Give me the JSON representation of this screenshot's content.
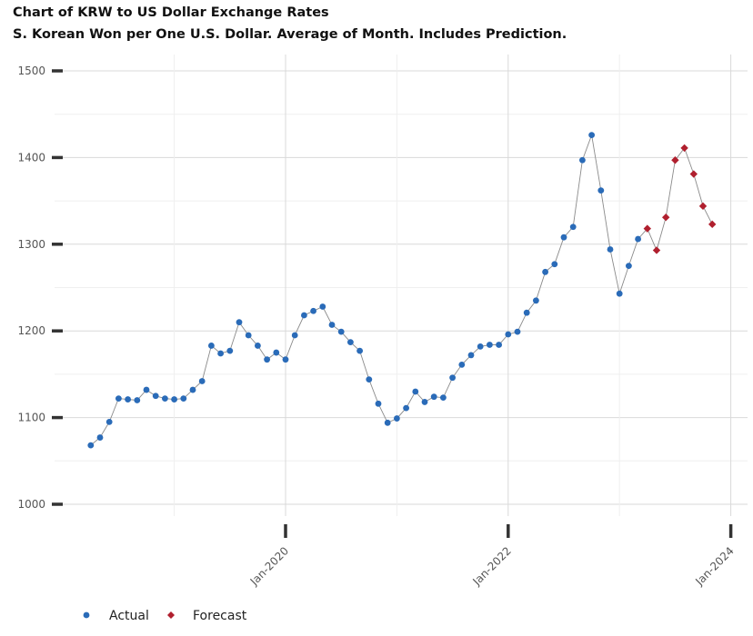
{
  "chart_data": {
    "type": "scatter",
    "title": "Chart of KRW to US Dollar Exchange Rates",
    "subtitle": "S. Korean Won per One U.S. Dollar.  Average of Month.  Includes Prediction.",
    "xlabel": "",
    "ylabel": "",
    "ylim": [
      1000,
      1500
    ],
    "y_ticks": [
      1000,
      1100,
      1200,
      1300,
      1400,
      1500
    ],
    "y_tick_labels": [
      "1000",
      "1100",
      "1200",
      "1300",
      "1400",
      "1500"
    ],
    "x_ticks": [
      "2020-01",
      "2022-01",
      "2024-01"
    ],
    "x_tick_labels": [
      "Jan-2020",
      "Jan-2022",
      "Jan-2024"
    ],
    "grid": true,
    "legend_position": "bottom-left",
    "series": [
      {
        "name": "Actual",
        "color": "#2a6bb8",
        "x": [
          "2018-04",
          "2018-05",
          "2018-06",
          "2018-07",
          "2018-08",
          "2018-09",
          "2018-10",
          "2018-11",
          "2018-12",
          "2019-01",
          "2019-02",
          "2019-03",
          "2019-04",
          "2019-05",
          "2019-06",
          "2019-07",
          "2019-08",
          "2019-09",
          "2019-10",
          "2019-11",
          "2019-12",
          "2020-01",
          "2020-02",
          "2020-03",
          "2020-04",
          "2020-05",
          "2020-06",
          "2020-07",
          "2020-08",
          "2020-09",
          "2020-10",
          "2020-11",
          "2020-12",
          "2021-01",
          "2021-02",
          "2021-03",
          "2021-04",
          "2021-05",
          "2021-06",
          "2021-07",
          "2021-08",
          "2021-09",
          "2021-10",
          "2021-11",
          "2021-12",
          "2022-01",
          "2022-02",
          "2022-03",
          "2022-04",
          "2022-05",
          "2022-06",
          "2022-07",
          "2022-08",
          "2022-09",
          "2022-10",
          "2022-11",
          "2022-12",
          "2023-01",
          "2023-02",
          "2023-03"
        ],
        "values": [
          1068,
          1077,
          1095,
          1122,
          1121,
          1120,
          1132,
          1125,
          1122,
          1121,
          1122,
          1132,
          1142,
          1183,
          1174,
          1177,
          1210,
          1195,
          1183,
          1167,
          1175,
          1167,
          1195,
          1218,
          1223,
          1228,
          1207,
          1199,
          1187,
          1177,
          1144,
          1116,
          1094,
          1099,
          1111,
          1130,
          1118,
          1124,
          1123,
          1146,
          1161,
          1172,
          1182,
          1184,
          1184,
          1196,
          1199,
          1221,
          1235,
          1268,
          1277,
          1308,
          1320,
          1397,
          1426,
          1362,
          1294,
          1243,
          1275,
          1306
        ]
      },
      {
        "name": "Forecast",
        "color": "#b01f2e",
        "x": [
          "2023-04",
          "2023-05",
          "2023-06",
          "2023-07",
          "2023-08",
          "2023-09",
          "2023-10",
          "2023-11"
        ],
        "values": [
          1318,
          1293,
          1331,
          1397,
          1411,
          1381,
          1344,
          1323
        ]
      }
    ]
  }
}
